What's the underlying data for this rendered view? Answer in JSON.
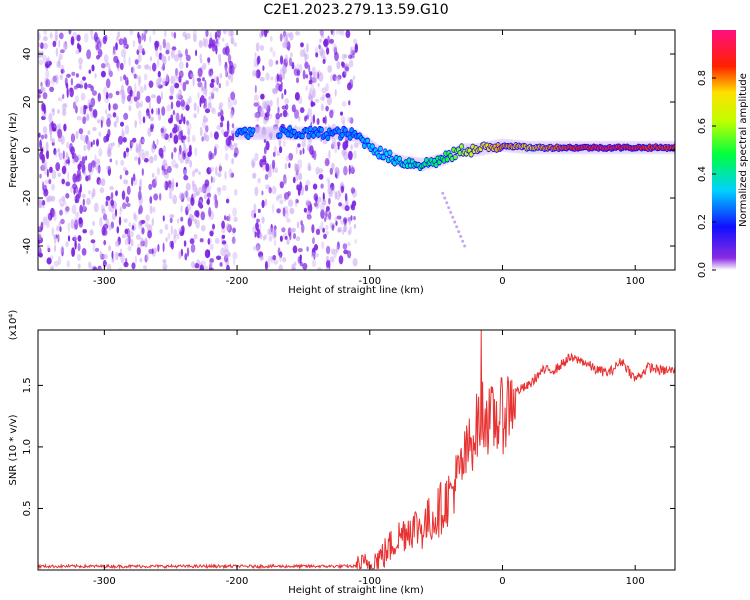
{
  "title": "C2E1.2023.279.13.59.G10",
  "colors": {
    "snr_line": "#e83232",
    "scatter_purple": "#7a1fe0",
    "scatter_light": "#c9a6f2",
    "axis": "#000000"
  },
  "chart_data": [
    {
      "type": "heatmap",
      "xlabel": "Height of straight line (km)",
      "ylabel": "Frequency (Hz)",
      "xlim": [
        -350,
        130
      ],
      "ylim": [
        -50,
        50
      ],
      "xticks": [
        -300,
        -200,
        -100,
        0,
        100
      ],
      "yticks": [
        -40,
        -20,
        0,
        20,
        40
      ],
      "colorbar": {
        "label": "Normalized spectral amplitude",
        "range": [
          0.0,
          1.0
        ],
        "ticks": [
          "0.0",
          "0.2",
          "0.4",
          "0.6",
          "0.8"
        ],
        "tick_values": [
          0.0,
          0.2,
          0.4,
          0.6,
          0.8
        ],
        "colormap": "rainbow (purple → blue → cyan → green → yellow → red → magenta)"
      },
      "noise_region_km": [
        -350,
        -110
      ],
      "ridge": {
        "x_km": [
          -200,
          -190,
          -150,
          -120,
          -110,
          -100,
          -90,
          -75,
          -60,
          -45,
          -30,
          -20,
          -10,
          0,
          20,
          50,
          80,
          110,
          130
        ],
        "freq_hz": [
          7,
          7,
          7,
          7,
          6,
          2,
          -2,
          -5,
          -6,
          -4,
          0,
          0,
          1,
          2,
          1,
          1,
          1,
          1,
          1
        ],
        "amplitude": [
          0.3,
          0.3,
          0.3,
          0.3,
          0.3,
          0.35,
          0.35,
          0.4,
          0.45,
          0.5,
          0.6,
          0.7,
          0.75,
          0.8,
          0.75,
          0.85,
          0.9,
          0.85,
          0.85
        ]
      }
    },
    {
      "type": "line",
      "xlabel": "Height of straight line (km)",
      "ylabel": "SNR (10 * v/v)",
      "y_multiplier": "(x10⁴)",
      "xlim": [
        -350,
        130
      ],
      "ylim": [
        0,
        1.95
      ],
      "xticks": [
        -300,
        -200,
        -100,
        0,
        100
      ],
      "yticks": [
        0.5,
        1.0,
        1.5
      ],
      "ytick_labels": [
        "0.5",
        "1.0",
        "1.5"
      ],
      "series": [
        {
          "x": [
            -350,
            -300,
            -250,
            -200,
            -150,
            -110,
            -100,
            -90,
            -80,
            -70,
            -60,
            -50,
            -40,
            -30,
            -20,
            -15,
            -10,
            0,
            10,
            20,
            30,
            40,
            50,
            60,
            70,
            80,
            90,
            100,
            110,
            120,
            130
          ],
          "y": [
            0.03,
            0.03,
            0.03,
            0.03,
            0.03,
            0.03,
            0.05,
            0.12,
            0.25,
            0.35,
            0.35,
            0.45,
            0.6,
            0.85,
            1.15,
            1.3,
            1.2,
            1.25,
            1.45,
            1.5,
            1.62,
            1.63,
            1.72,
            1.7,
            1.63,
            1.6,
            1.7,
            1.55,
            1.65,
            1.62,
            1.62
          ]
        }
      ]
    }
  ]
}
